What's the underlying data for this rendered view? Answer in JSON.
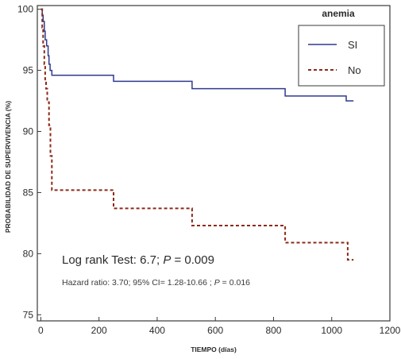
{
  "chart_data": {
    "type": "line",
    "title": "",
    "xlabel": "TIEMPO (días)",
    "ylabel": "PROBABILIDAD DE SUPERVIVENCIA (%)",
    "xlim": [
      -12,
      1200
    ],
    "ylim": [
      74.5,
      100.3
    ],
    "xticks": [
      0,
      200,
      400,
      600,
      800,
      1000,
      1200
    ],
    "yticks": [
      75,
      80,
      85,
      90,
      95,
      100
    ],
    "grid": false,
    "legend": {
      "title": "anemia",
      "placement": "top-right"
    },
    "series": [
      {
        "name": "SI",
        "color": "#2f3a8f",
        "style": "solid",
        "step_points": [
          [
            0,
            100
          ],
          [
            5,
            99.5
          ],
          [
            8,
            99
          ],
          [
            12,
            98.2
          ],
          [
            15,
            97.5
          ],
          [
            20,
            97.0
          ],
          [
            25,
            96.2
          ],
          [
            28,
            95.5
          ],
          [
            32,
            95.0
          ],
          [
            38,
            94.6
          ],
          [
            250,
            94.1
          ],
          [
            520,
            93.5
          ],
          [
            840,
            92.9
          ],
          [
            1050,
            92.5
          ],
          [
            1075,
            92.5
          ]
        ]
      },
      {
        "name": "No",
        "color": "#8b2a1a",
        "style": "dashed",
        "step_points": [
          [
            0,
            100
          ],
          [
            5,
            98.5
          ],
          [
            8,
            97
          ],
          [
            12,
            95.5
          ],
          [
            15,
            94
          ],
          [
            18,
            93.5
          ],
          [
            22,
            92.4
          ],
          [
            28,
            90.5
          ],
          [
            33,
            88
          ],
          [
            38,
            85.2
          ],
          [
            250,
            83.7
          ],
          [
            520,
            82.3
          ],
          [
            840,
            80.9
          ],
          [
            1055,
            79.5
          ],
          [
            1075,
            79.5
          ]
        ]
      }
    ],
    "annotations": [
      {
        "id": "logrank",
        "parts": [
          "Log rank Test: 6.7; ",
          "P",
          "  = 0.009"
        ]
      },
      {
        "id": "hazard",
        "parts": [
          "Hazard ratio: 3.70; 95% CI= 1.28-10.66 ; ",
          "P",
          " = 0.016"
        ]
      }
    ]
  }
}
